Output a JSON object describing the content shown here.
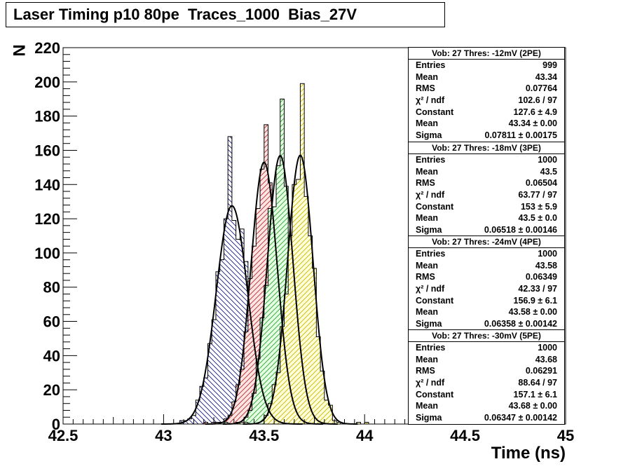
{
  "title": "Laser Timing p10 80pe  Traces_1000  Bias_27V",
  "chart_data": {
    "type": "histogram",
    "xlabel": "Time (ns)",
    "ylabel": "N",
    "xlim": [
      42.5,
      45.0
    ],
    "ylim": [
      0,
      220
    ],
    "x_ticks": [
      "42.5",
      "43",
      "43.5",
      "44",
      "44.5",
      "45"
    ],
    "y_ticks": [
      "0",
      "20",
      "40",
      "60",
      "80",
      "100",
      "120",
      "140",
      "160",
      "180",
      "200",
      "220"
    ],
    "bin_width": 0.02,
    "series": [
      {
        "header": "Vob: 27  Thres: -12mV (2PE)",
        "hatch": "diagonal-back",
        "fill_color": "#ffffff",
        "hatch_color": "#1a1a80",
        "peak": 168,
        "fit": {
          "constant": 127.6,
          "mean": 43.34,
          "sigma": 0.07811
        },
        "stats": [
          {
            "label": "Entries",
            "value": "999"
          },
          {
            "label": "Mean",
            "value": "43.34"
          },
          {
            "label": "RMS",
            "value": "0.07764"
          },
          {
            "label": "χ² / ndf",
            "value": "102.6 / 97"
          },
          {
            "label": "Constant",
            "value": "127.6 ± 4.9"
          },
          {
            "label": "Mean",
            "value": "43.34 ± 0.00"
          },
          {
            "label": "Sigma",
            "value": "0.07811 ± 0.00175"
          }
        ]
      },
      {
        "header": "Vob: 27  Thres: -18mV (3PE)",
        "hatch": "diagonal-forward",
        "fill_color": "#ffe4e4",
        "hatch_color": "#b03030",
        "peak": 175,
        "fit": {
          "constant": 153,
          "mean": 43.5,
          "sigma": 0.06518
        },
        "stats": [
          {
            "label": "Entries",
            "value": "1000"
          },
          {
            "label": "Mean",
            "value": "43.5"
          },
          {
            "label": "RMS",
            "value": "0.06504"
          },
          {
            "label": "χ² / ndf",
            "value": "63.77 / 97"
          },
          {
            "label": "Constant",
            "value": "153 ± 5.9"
          },
          {
            "label": "Mean",
            "value": "43.5 ± 0.0"
          },
          {
            "label": "Sigma",
            "value": "0.06518 ± 0.00146"
          }
        ]
      },
      {
        "header": "Vob: 27  Thres: -24mV (4PE)",
        "hatch": "diagonal-forward",
        "fill_color": "#e4ffe4",
        "hatch_color": "#30a030",
        "peak": 190,
        "fit": {
          "constant": 156.9,
          "mean": 43.58,
          "sigma": 0.06358
        },
        "stats": [
          {
            "label": "Entries",
            "value": "1000"
          },
          {
            "label": "Mean",
            "value": "43.58"
          },
          {
            "label": "RMS",
            "value": "0.06349"
          },
          {
            "label": "χ² / ndf",
            "value": "42.33 / 97"
          },
          {
            "label": "Constant",
            "value": "156.9 ± 6.1"
          },
          {
            "label": "Mean",
            "value": "43.58 ± 0.00"
          },
          {
            "label": "Sigma",
            "value": "0.06358 ± 0.00142"
          }
        ]
      },
      {
        "header": "Vob: 27  Thres: -30mV (5PE)",
        "hatch": "diagonal-forward",
        "fill_color": "#ffffdc",
        "hatch_color": "#c8b400",
        "peak": 199,
        "fit": {
          "constant": 157.1,
          "mean": 43.68,
          "sigma": 0.06347
        },
        "stats": [
          {
            "label": "Entries",
            "value": "1000"
          },
          {
            "label": "Mean",
            "value": "43.68"
          },
          {
            "label": "RMS",
            "value": "0.06291"
          },
          {
            "label": "χ² / ndf",
            "value": "88.64 / 97"
          },
          {
            "label": "Constant",
            "value": "157.1 ± 6.1"
          },
          {
            "label": "Mean",
            "value": "43.68 ± 0.00"
          },
          {
            "label": "Sigma",
            "value": "0.06347 ± 0.00142"
          }
        ]
      }
    ]
  }
}
